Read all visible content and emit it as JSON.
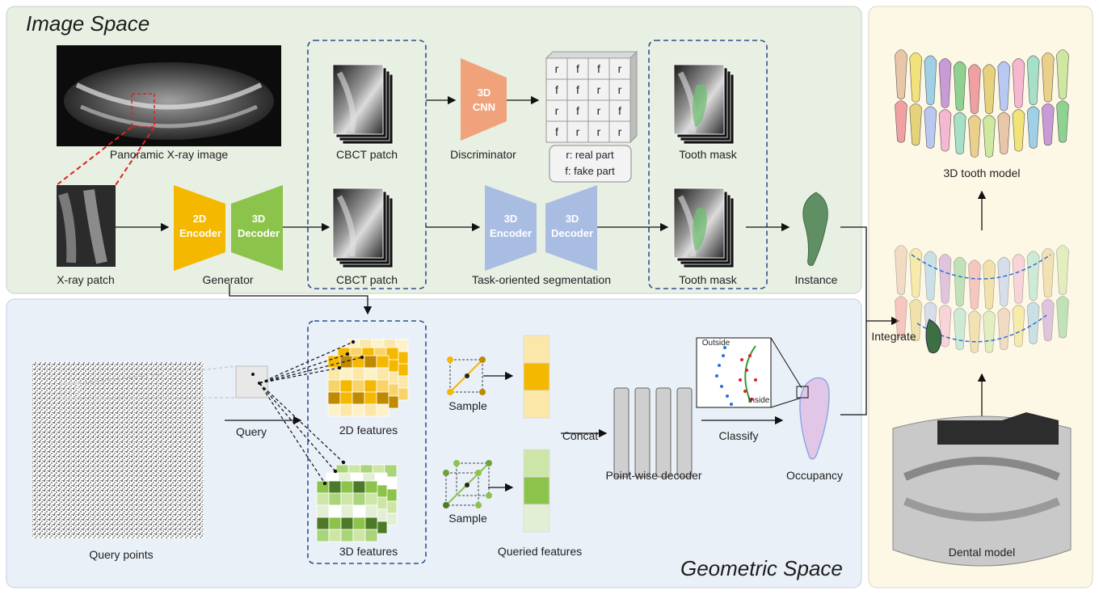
{
  "panels": {
    "image_space": "Image Space",
    "geometric_space": "Geometric Space"
  },
  "labels": {
    "panoramic": "Panoramic X-ray image",
    "xray_patch": "X-ray patch",
    "generator": "Generator",
    "cbct_patch_top": "CBCT patch",
    "cbct_patch_bottom": "CBCT patch",
    "discriminator": "Discriminator",
    "tooth_mask_top": "Tooth mask",
    "tooth_mask_bottom": "Tooth mask",
    "task_seg": "Task-oriented segmentation",
    "instance": "Instance",
    "model_3d": "3D tooth model",
    "integrate": "Integrate",
    "dental_model": "Dental model",
    "query_points": "Query points",
    "query": "Query",
    "features_2d": "2D features",
    "features_3d": "3D features",
    "sample_top": "Sample",
    "sample_bottom": "Sample",
    "queried_features": "Queried features",
    "concat": "Concat",
    "decoder": "Point-wise decoder",
    "classify": "Classify",
    "occupancy": "Occupancy",
    "outside": "Outside",
    "inside": "Inside"
  },
  "blocks": {
    "enc2d_1": "2D",
    "enc2d_2": "Encoder",
    "dec3d_1": "3D",
    "dec3d_2": "Decoder",
    "cnn_1": "3D",
    "cnn_2": "CNN",
    "seg_enc_1": "3D",
    "seg_enc_2": "Encoder",
    "seg_dec_1": "3D",
    "seg_dec_2": "Decoder"
  },
  "grid": {
    "rows": [
      [
        "r",
        "f",
        "f",
        "r"
      ],
      [
        "f",
        "f",
        "r",
        "r"
      ],
      [
        "r",
        "f",
        "r",
        "f"
      ],
      [
        "f",
        "r",
        "r",
        "r"
      ]
    ]
  },
  "legend": {
    "real": "r: real part",
    "fake": "f: fake part"
  },
  "colors": {
    "image_panel": "#e8efe3",
    "geometric_panel": "#eaf0f8",
    "right_panel": "#fdf7e6",
    "encoder": "#f5b800",
    "decoder": "#8cc34a",
    "cnn": "#f0a27a",
    "seg": "#a9bde3",
    "dashed_box": "#2f4f8f",
    "red_link": "#e02020",
    "tooth_green": "#5f8f63"
  }
}
